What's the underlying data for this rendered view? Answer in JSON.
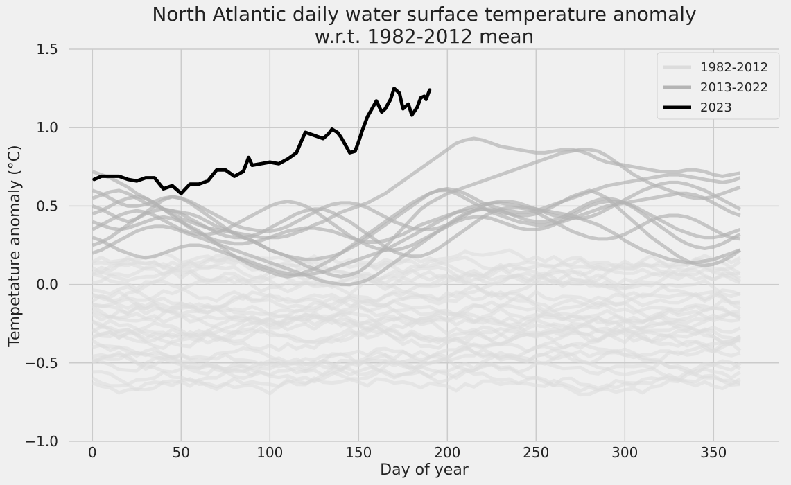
{
  "chart_data": {
    "type": "line",
    "title": "North Atlantic daily water surface temperature anomaly",
    "subtitle": "w.r.t. 1982-2012 mean",
    "xlabel": "Day of year",
    "ylabel": "Tempetature anomaly (°C)",
    "xlim": [
      -13,
      387
    ],
    "ylim": [
      -1.0,
      1.5
    ],
    "x_ticks": [
      0,
      50,
      100,
      150,
      200,
      250,
      300,
      350
    ],
    "x_tick_labels": [
      "0",
      "50",
      "100",
      "150",
      "200",
      "250",
      "300",
      "350"
    ],
    "y_ticks": [
      -1.0,
      -0.5,
      0.0,
      0.5,
      1.0,
      1.5
    ],
    "y_tick_labels": [
      "−1.0",
      "−0.5",
      "0.0",
      "0.5",
      "1.0",
      "1.5"
    ],
    "grid": true,
    "legend_position": "top-right",
    "legend": [
      {
        "label": "1982-2012",
        "color": "#dcdcdc"
      },
      {
        "label": "2013-2022",
        "color": "#b4b4b4"
      },
      {
        "label": "2023",
        "color": "#000000"
      }
    ],
    "series_2023": {
      "name": "2023",
      "color": "#000000",
      "x": [
        1,
        5,
        10,
        15,
        20,
        25,
        30,
        35,
        40,
        45,
        50,
        55,
        60,
        65,
        70,
        75,
        80,
        85,
        88,
        90,
        95,
        100,
        105,
        110,
        115,
        118,
        120,
        125,
        130,
        133,
        135,
        138,
        140,
        145,
        148,
        150,
        152,
        155,
        158,
        160,
        163,
        165,
        168,
        170,
        173,
        175,
        178,
        180,
        183,
        185,
        187,
        188,
        190
      ],
      "y": [
        0.67,
        0.69,
        0.69,
        0.69,
        0.67,
        0.66,
        0.68,
        0.68,
        0.61,
        0.63,
        0.58,
        0.64,
        0.64,
        0.66,
        0.73,
        0.73,
        0.69,
        0.72,
        0.81,
        0.76,
        0.77,
        0.78,
        0.77,
        0.8,
        0.84,
        0.92,
        0.97,
        0.95,
        0.93,
        0.96,
        0.99,
        0.97,
        0.94,
        0.84,
        0.85,
        0.91,
        0.98,
        1.07,
        1.13,
        1.17,
        1.1,
        1.12,
        1.18,
        1.25,
        1.22,
        1.12,
        1.15,
        1.08,
        1.13,
        1.19,
        1.2,
        1.18,
        1.24
      ]
    },
    "recent_years": {
      "name": "2013-2022",
      "color": "#b4b4b4",
      "day_step": 5,
      "lines": [
        [
          0.72,
          0.7,
          0.68,
          0.65,
          0.62,
          0.58,
          0.55,
          0.52,
          0.48,
          0.45,
          0.42,
          0.4,
          0.38,
          0.36,
          0.35,
          0.34,
          0.33,
          0.32,
          0.31,
          0.3,
          0.3,
          0.3,
          0.31,
          0.33,
          0.35,
          0.38,
          0.4,
          0.43,
          0.46,
          0.48,
          0.5,
          0.52,
          0.55,
          0.58,
          0.62,
          0.66,
          0.7,
          0.74,
          0.78,
          0.82,
          0.86,
          0.9,
          0.92,
          0.93,
          0.92,
          0.9,
          0.88,
          0.87,
          0.86,
          0.85,
          0.84,
          0.84,
          0.85,
          0.86,
          0.86,
          0.85,
          0.83,
          0.8,
          0.78,
          0.77,
          0.76,
          0.75,
          0.74,
          0.73,
          0.72,
          0.72,
          0.72,
          0.73,
          0.73,
          0.72,
          0.7,
          0.69,
          0.7,
          0.71
        ],
        [
          0.55,
          0.57,
          0.59,
          0.6,
          0.58,
          0.55,
          0.52,
          0.5,
          0.48,
          0.47,
          0.46,
          0.45,
          0.43,
          0.4,
          0.37,
          0.35,
          0.33,
          0.3,
          0.28,
          0.25,
          0.22,
          0.2,
          0.18,
          0.15,
          0.12,
          0.1,
          0.08,
          0.06,
          0.05,
          0.06,
          0.08,
          0.12,
          0.18,
          0.24,
          0.3,
          0.36,
          0.42,
          0.48,
          0.52,
          0.55,
          0.58,
          0.6,
          0.62,
          0.64,
          0.66,
          0.68,
          0.7,
          0.72,
          0.74,
          0.76,
          0.78,
          0.8,
          0.82,
          0.84,
          0.85,
          0.86,
          0.86,
          0.85,
          0.82,
          0.78,
          0.74,
          0.7,
          0.67,
          0.64,
          0.62,
          0.6,
          0.58,
          0.56,
          0.55,
          0.55,
          0.56,
          0.58,
          0.6,
          0.62
        ],
        [
          0.5,
          0.48,
          0.45,
          0.42,
          0.4,
          0.42,
          0.46,
          0.5,
          0.54,
          0.56,
          0.55,
          0.52,
          0.48,
          0.44,
          0.4,
          0.36,
          0.32,
          0.3,
          0.28,
          0.25,
          0.22,
          0.2,
          0.18,
          0.17,
          0.16,
          0.16,
          0.17,
          0.18,
          0.2,
          0.23,
          0.26,
          0.3,
          0.34,
          0.38,
          0.42,
          0.46,
          0.5,
          0.54,
          0.58,
          0.6,
          0.61,
          0.6,
          0.58,
          0.55,
          0.52,
          0.5,
          0.48,
          0.47,
          0.46,
          0.46,
          0.47,
          0.49,
          0.51,
          0.53,
          0.55,
          0.57,
          0.59,
          0.61,
          0.63,
          0.64,
          0.65,
          0.66,
          0.67,
          0.68,
          0.69,
          0.7,
          0.7,
          0.69,
          0.68,
          0.67,
          0.66,
          0.65,
          0.66,
          0.68
        ],
        [
          0.45,
          0.47,
          0.5,
          0.53,
          0.55,
          0.56,
          0.55,
          0.52,
          0.48,
          0.44,
          0.4,
          0.36,
          0.33,
          0.3,
          0.28,
          0.27,
          0.26,
          0.26,
          0.27,
          0.28,
          0.3,
          0.32,
          0.34,
          0.35,
          0.36,
          0.36,
          0.35,
          0.34,
          0.32,
          0.3,
          0.28,
          0.27,
          0.27,
          0.28,
          0.3,
          0.32,
          0.35,
          0.38,
          0.4,
          0.42,
          0.44,
          0.46,
          0.47,
          0.48,
          0.48,
          0.47,
          0.46,
          0.45,
          0.44,
          0.44,
          0.45,
          0.47,
          0.5,
          0.53,
          0.56,
          0.58,
          0.6,
          0.58,
          0.55,
          0.5,
          0.45,
          0.4,
          0.35,
          0.3,
          0.26,
          0.22,
          0.18,
          0.15,
          0.13,
          0.12,
          0.13,
          0.15,
          0.18,
          0.22
        ],
        [
          0.4,
          0.38,
          0.36,
          0.35,
          0.36,
          0.38,
          0.4,
          0.42,
          0.43,
          0.42,
          0.4,
          0.37,
          0.34,
          0.3,
          0.26,
          0.22,
          0.18,
          0.15,
          0.12,
          0.1,
          0.08,
          0.06,
          0.05,
          0.06,
          0.08,
          0.1,
          0.13,
          0.16,
          0.2,
          0.24,
          0.28,
          0.32,
          0.36,
          0.4,
          0.44,
          0.48,
          0.52,
          0.55,
          0.58,
          0.6,
          0.6,
          0.58,
          0.55,
          0.52,
          0.49,
          0.46,
          0.44,
          0.42,
          0.4,
          0.39,
          0.38,
          0.38,
          0.39,
          0.4,
          0.42,
          0.44,
          0.46,
          0.48,
          0.5,
          0.51,
          0.52,
          0.53,
          0.54,
          0.55,
          0.56,
          0.57,
          0.58,
          0.58,
          0.57,
          0.55,
          0.52,
          0.49,
          0.46,
          0.44
        ],
        [
          0.3,
          0.28,
          0.25,
          0.22,
          0.2,
          0.18,
          0.17,
          0.18,
          0.2,
          0.22,
          0.24,
          0.25,
          0.25,
          0.24,
          0.22,
          0.2,
          0.18,
          0.16,
          0.14,
          0.12,
          0.1,
          0.08,
          0.07,
          0.06,
          0.06,
          0.07,
          0.08,
          0.1,
          0.12,
          0.14,
          0.16,
          0.18,
          0.2,
          0.22,
          0.25,
          0.28,
          0.31,
          0.34,
          0.37,
          0.4,
          0.43,
          0.46,
          0.48,
          0.5,
          0.51,
          0.52,
          0.52,
          0.51,
          0.5,
          0.49,
          0.48,
          0.47,
          0.46,
          0.45,
          0.44,
          0.42,
          0.4,
          0.38,
          0.35,
          0.32,
          0.28,
          0.25,
          0.22,
          0.2,
          0.18,
          0.16,
          0.15,
          0.14,
          0.14,
          0.15,
          0.16,
          0.18,
          0.2,
          0.22
        ],
        [
          0.2,
          0.22,
          0.25,
          0.28,
          0.31,
          0.34,
          0.36,
          0.37,
          0.37,
          0.36,
          0.34,
          0.32,
          0.3,
          0.28,
          0.26,
          0.24,
          0.22,
          0.2,
          0.18,
          0.16,
          0.14,
          0.12,
          0.1,
          0.08,
          0.06,
          0.04,
          0.02,
          0.01,
          0.0,
          0.0,
          0.01,
          0.03,
          0.06,
          0.1,
          0.14,
          0.18,
          0.22,
          0.26,
          0.3,
          0.34,
          0.38,
          0.42,
          0.45,
          0.47,
          0.48,
          0.48,
          0.47,
          0.45,
          0.43,
          0.41,
          0.4,
          0.4,
          0.41,
          0.43,
          0.46,
          0.49,
          0.52,
          0.54,
          0.55,
          0.54,
          0.52,
          0.49,
          0.45,
          0.41,
          0.37,
          0.33,
          0.29,
          0.26,
          0.24,
          0.23,
          0.24,
          0.26,
          0.29,
          0.32
        ],
        [
          0.6,
          0.58,
          0.55,
          0.52,
          0.5,
          0.5,
          0.51,
          0.53,
          0.55,
          0.56,
          0.55,
          0.53,
          0.5,
          0.47,
          0.44,
          0.41,
          0.38,
          0.36,
          0.35,
          0.34,
          0.34,
          0.35,
          0.37,
          0.4,
          0.43,
          0.46,
          0.49,
          0.51,
          0.52,
          0.52,
          0.51,
          0.49,
          0.46,
          0.43,
          0.4,
          0.38,
          0.36,
          0.35,
          0.35,
          0.36,
          0.38,
          0.41,
          0.44,
          0.47,
          0.5,
          0.52,
          0.53,
          0.53,
          0.52,
          0.5,
          0.48,
          0.46,
          0.44,
          0.43,
          0.42,
          0.42,
          0.43,
          0.45,
          0.48,
          0.51,
          0.54,
          0.57,
          0.6,
          0.62,
          0.64,
          0.65,
          0.65,
          0.64,
          0.62,
          0.6,
          0.57,
          0.54,
          0.51,
          0.48
        ],
        [
          0.35,
          0.38,
          0.41,
          0.44,
          0.46,
          0.47,
          0.46,
          0.44,
          0.41,
          0.38,
          0.35,
          0.33,
          0.32,
          0.32,
          0.33,
          0.35,
          0.38,
          0.41,
          0.44,
          0.47,
          0.5,
          0.52,
          0.53,
          0.52,
          0.5,
          0.47,
          0.43,
          0.39,
          0.35,
          0.31,
          0.28,
          0.25,
          0.23,
          0.22,
          0.22,
          0.23,
          0.25,
          0.28,
          0.31,
          0.34,
          0.37,
          0.4,
          0.42,
          0.43,
          0.43,
          0.42,
          0.4,
          0.38,
          0.36,
          0.35,
          0.35,
          0.36,
          0.38,
          0.41,
          0.44,
          0.47,
          0.5,
          0.52,
          0.53,
          0.53,
          0.52,
          0.5,
          0.47,
          0.44,
          0.41,
          0.38,
          0.35,
          0.33,
          0.31,
          0.3,
          0.3,
          0.31,
          0.33,
          0.35
        ],
        [
          0.25,
          0.27,
          0.3,
          0.34,
          0.38,
          0.42,
          0.45,
          0.47,
          0.48,
          0.47,
          0.45,
          0.42,
          0.39,
          0.36,
          0.33,
          0.31,
          0.3,
          0.3,
          0.31,
          0.33,
          0.36,
          0.39,
          0.42,
          0.45,
          0.47,
          0.48,
          0.48,
          0.46,
          0.43,
          0.4,
          0.36,
          0.32,
          0.28,
          0.24,
          0.21,
          0.19,
          0.18,
          0.18,
          0.2,
          0.23,
          0.27,
          0.31,
          0.35,
          0.39,
          0.43,
          0.46,
          0.48,
          0.49,
          0.49,
          0.48,
          0.46,
          0.43,
          0.4,
          0.37,
          0.34,
          0.32,
          0.3,
          0.29,
          0.29,
          0.3,
          0.32,
          0.35,
          0.38,
          0.41,
          0.43,
          0.44,
          0.44,
          0.43,
          0.41,
          0.38,
          0.35,
          0.32,
          0.3,
          0.29
        ]
      ]
    },
    "reference_years": {
      "name": "1982-2012",
      "color": "#dcdcdc",
      "note_count": 31,
      "day_step": 5
    }
  }
}
